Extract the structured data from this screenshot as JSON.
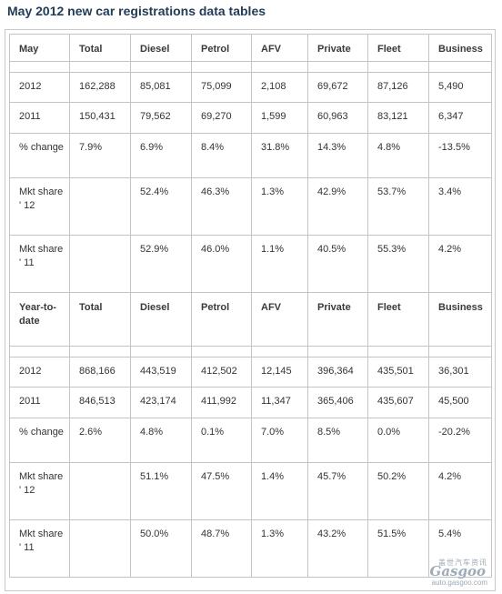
{
  "title": "May 2012 new car registrations data tables",
  "month": {
    "header": [
      "May",
      "Total",
      "Diesel",
      "Petrol",
      "AFV",
      "Private",
      "Fleet",
      "Business"
    ],
    "rows": [
      [
        "2012",
        "162,288",
        "85,081",
        "75,099",
        "2,108",
        "69,672",
        "87,126",
        "5,490"
      ],
      [
        "2011",
        "150,431",
        "79,562",
        "69,270",
        "1,599",
        "60,963",
        "83,121",
        "6,347"
      ],
      [
        "% change",
        "7.9%",
        "6.9%",
        "8.4%",
        "31.8%",
        "14.3%",
        "4.8%",
        "-13.5%"
      ],
      [
        "Mkt share ' 12",
        "",
        "52.4%",
        "46.3%",
        "1.3%",
        "42.9%",
        "53.7%",
        "3.4%"
      ],
      [
        "Mkt share ' 11",
        "",
        "52.9%",
        "46.0%",
        "1.1%",
        "40.5%",
        "55.3%",
        "4.2%"
      ]
    ]
  },
  "ytd": {
    "header": [
      "Year-to-date",
      "Total",
      "Diesel",
      "Petrol",
      "AFV",
      "Private",
      "Fleet",
      "Business"
    ],
    "rows": [
      [
        "2012",
        "868,166",
        "443,519",
        "412,502",
        "12,145",
        "396,364",
        "435,501",
        "36,301"
      ],
      [
        "2011",
        "846,513",
        "423,174",
        "411,992",
        "11,347",
        "365,406",
        "435,607",
        "45,500"
      ],
      [
        "% change",
        "2.6%",
        "4.8%",
        "0.1%",
        "7.0%",
        "8.5%",
        "0.0%",
        "-20.2%"
      ],
      [
        "Mkt share ' 12",
        "",
        "51.1%",
        "47.5%",
        "1.4%",
        "45.7%",
        "50.2%",
        "4.2%"
      ],
      [
        "Mkt share ' 11",
        "",
        "50.0%",
        "48.7%",
        "1.3%",
        "43.2%",
        "51.5%",
        "5.4%"
      ]
    ]
  },
  "watermark": {
    "cn": "盖世汽车资讯",
    "logo": "Gasgoo",
    "url": "auto.gasgoo.com"
  }
}
